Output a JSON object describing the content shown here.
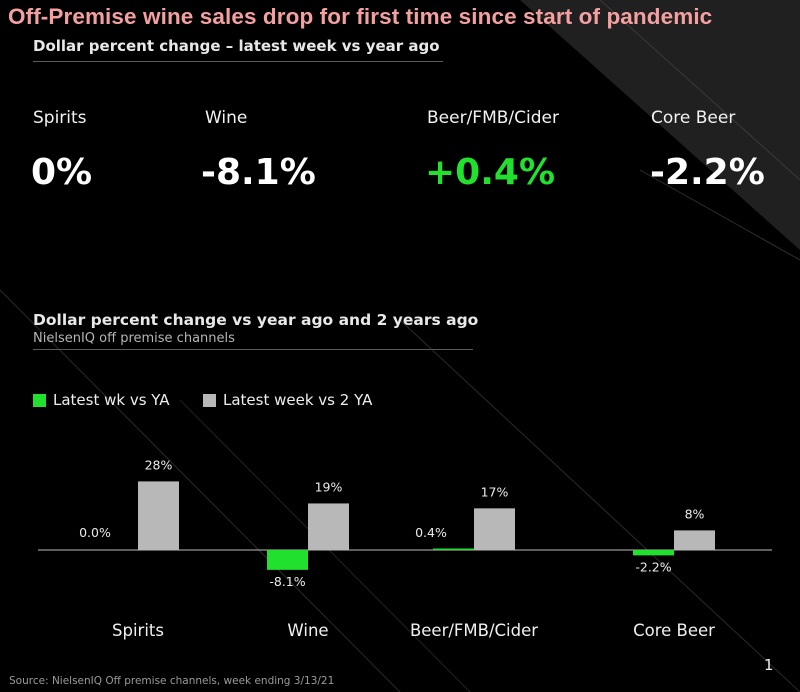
{
  "headline": "Off-Premise wine  sales drop  for first time since start of pandemic",
  "subtitle_top": "Dollar percent change – latest week vs year ago",
  "kpis": [
    {
      "label": "Spirits",
      "value": "0%"
    },
    {
      "label": "Wine",
      "value": "-8.1%"
    },
    {
      "label": "Beer/FMB/Cider",
      "value": "+0.4%"
    },
    {
      "label": "Core Beer",
      "value": "-2.2%"
    }
  ],
  "colors": {
    "positive": "#22e12e",
    "series_latest": "#22e12e",
    "series_2ya": "#b8b8b8"
  },
  "chart_data": {
    "type": "bar",
    "title": "Dollar percent change vs year ago and 2 years ago",
    "subtitle": "NielsenIQ off premise channels",
    "categories": [
      "Spirits",
      "Wine",
      "Beer/FMB/Cider",
      "Core Beer"
    ],
    "series": [
      {
        "name": "Latest wk vs YA",
        "values": [
          0.0,
          -8.1,
          0.4,
          -2.2
        ],
        "labels": [
          "0.0%",
          "-8.1%",
          "0.4%",
          "-2.2%"
        ]
      },
      {
        "name": "Latest week vs 2 YA",
        "values": [
          28,
          19,
          17,
          8
        ],
        "labels": [
          "28%",
          "19%",
          "17%",
          "8%"
        ]
      }
    ],
    "xlabel": "",
    "ylabel": "",
    "legend": "top-left",
    "grid": false
  },
  "source": "Source: NielsenIQ Off premise channels, week ending 3/13/21",
  "page_number": "1"
}
